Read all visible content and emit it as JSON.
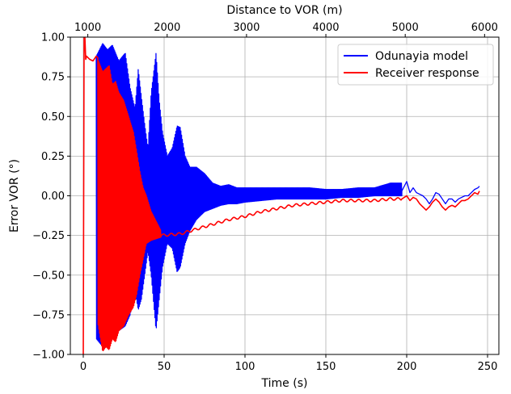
{
  "chart_data": {
    "type": "line",
    "xlabel": "Time (s)",
    "ylabel": "Error VOR (°)",
    "x2label": "Distance to VOR (m)",
    "xlim": [
      -8,
      257
    ],
    "ylim": [
      -1.0,
      1.0
    ],
    "x2lim": [
      780,
      6180
    ],
    "grid": true,
    "legend_position": "top-right",
    "xticks": [
      0,
      50,
      100,
      150,
      200,
      250
    ],
    "xtick_labels": [
      "0",
      "50",
      "100",
      "150",
      "200",
      "250"
    ],
    "yticks": [
      -1.0,
      -0.75,
      -0.5,
      -0.25,
      0.0,
      0.25,
      0.5,
      0.75,
      1.0
    ],
    "ytick_labels": [
      "−1.00",
      "−0.75",
      "−0.50",
      "−0.25",
      "0.00",
      "0.25",
      "0.50",
      "0.75",
      "1.00"
    ],
    "x2ticks": [
      1000,
      2000,
      3000,
      4000,
      5000,
      6000
    ],
    "x2tick_labels": [
      "1000",
      "2000",
      "3000",
      "4000",
      "5000",
      "6000"
    ],
    "series": [
      {
        "name": "Odunayia model",
        "color": "#0000ff",
        "envelope_upper": [
          [
            8,
            0.88
          ],
          [
            12,
            0.96
          ],
          [
            15,
            0.92
          ],
          [
            18,
            0.95
          ],
          [
            22,
            0.85
          ],
          [
            26,
            0.9
          ],
          [
            29,
            0.68
          ],
          [
            32,
            0.55
          ],
          [
            34,
            0.8
          ],
          [
            36,
            0.62
          ],
          [
            38,
            0.45
          ],
          [
            40,
            0.3
          ],
          [
            42,
            0.65
          ],
          [
            45,
            0.9
          ],
          [
            47,
            0.6
          ],
          [
            49,
            0.4
          ],
          [
            52,
            0.25
          ],
          [
            55,
            0.3
          ],
          [
            58,
            0.44
          ],
          [
            60,
            0.43
          ],
          [
            63,
            0.25
          ],
          [
            66,
            0.18
          ],
          [
            70,
            0.18
          ],
          [
            75,
            0.14
          ],
          [
            80,
            0.08
          ],
          [
            85,
            0.06
          ],
          [
            90,
            0.07
          ],
          [
            95,
            0.05
          ],
          [
            100,
            0.05
          ],
          [
            110,
            0.05
          ],
          [
            120,
            0.05
          ],
          [
            130,
            0.05
          ],
          [
            140,
            0.05
          ],
          [
            150,
            0.04
          ],
          [
            160,
            0.04
          ],
          [
            170,
            0.05
          ],
          [
            180,
            0.05
          ],
          [
            190,
            0.08
          ],
          [
            197,
            0.08
          ]
        ],
        "envelope_lower": [
          [
            8,
            -0.9
          ],
          [
            12,
            -0.95
          ],
          [
            15,
            -0.92
          ],
          [
            18,
            -0.9
          ],
          [
            22,
            -0.85
          ],
          [
            26,
            -0.82
          ],
          [
            29,
            -0.75
          ],
          [
            32,
            -0.6
          ],
          [
            34,
            -0.72
          ],
          [
            36,
            -0.65
          ],
          [
            38,
            -0.5
          ],
          [
            40,
            -0.35
          ],
          [
            42,
            -0.5
          ],
          [
            45,
            -0.85
          ],
          [
            47,
            -0.65
          ],
          [
            49,
            -0.45
          ],
          [
            52,
            -0.3
          ],
          [
            55,
            -0.33
          ],
          [
            58,
            -0.48
          ],
          [
            60,
            -0.45
          ],
          [
            63,
            -0.3
          ],
          [
            66,
            -0.22
          ],
          [
            70,
            -0.15
          ],
          [
            75,
            -0.1
          ],
          [
            80,
            -0.08
          ],
          [
            85,
            -0.06
          ],
          [
            90,
            -0.05
          ],
          [
            95,
            -0.05
          ],
          [
            100,
            -0.04
          ],
          [
            110,
            -0.03
          ],
          [
            120,
            -0.02
          ],
          [
            130,
            -0.02
          ],
          [
            140,
            -0.02
          ],
          [
            150,
            -0.02
          ],
          [
            160,
            -0.01
          ],
          [
            170,
            -0.01
          ],
          [
            180,
            0.0
          ],
          [
            190,
            0.0
          ],
          [
            197,
            0.0
          ]
        ],
        "tail": [
          [
            197,
            0.03
          ],
          [
            199,
            0.07
          ],
          [
            200,
            0.09
          ],
          [
            202,
            0.02
          ],
          [
            204,
            0.05
          ],
          [
            206,
            0.02
          ],
          [
            208,
            0.01
          ],
          [
            210,
            0.0
          ],
          [
            212,
            -0.02
          ],
          [
            214,
            -0.05
          ],
          [
            216,
            -0.02
          ],
          [
            218,
            0.02
          ],
          [
            220,
            0.01
          ],
          [
            222,
            -0.02
          ],
          [
            224,
            -0.05
          ],
          [
            226,
            -0.02
          ],
          [
            228,
            -0.02
          ],
          [
            230,
            -0.04
          ],
          [
            232,
            -0.02
          ],
          [
            234,
            -0.01
          ],
          [
            236,
            0.0
          ],
          [
            238,
            0.0
          ],
          [
            240,
            0.02
          ],
          [
            242,
            0.04
          ],
          [
            244,
            0.05
          ],
          [
            245,
            0.06
          ]
        ]
      },
      {
        "name": "Receiver response",
        "color": "#ff0000",
        "spike": [
          [
            0,
            -1.0
          ],
          [
            0.5,
            1.0
          ],
          [
            1,
            1.0
          ],
          [
            1.5,
            0.86
          ],
          [
            2,
            0.88
          ],
          [
            4,
            0.86
          ],
          [
            6,
            0.85
          ],
          [
            8,
            0.88
          ],
          [
            9,
            0.87
          ]
        ],
        "envelope_upper": [
          [
            9,
            0.86
          ],
          [
            12,
            0.78
          ],
          [
            14,
            0.8
          ],
          [
            16,
            0.82
          ],
          [
            18,
            0.7
          ],
          [
            20,
            0.72
          ],
          [
            22,
            0.65
          ],
          [
            25,
            0.6
          ],
          [
            28,
            0.5
          ],
          [
            31,
            0.4
          ],
          [
            33,
            0.28
          ],
          [
            35,
            0.15
          ],
          [
            37,
            0.05
          ],
          [
            39,
            0.0
          ],
          [
            42,
            -0.1
          ],
          [
            45,
            -0.16
          ],
          [
            48,
            -0.22
          ]
        ],
        "envelope_lower": [
          [
            9,
            -0.8
          ],
          [
            12,
            -0.98
          ],
          [
            14,
            -0.95
          ],
          [
            16,
            -0.97
          ],
          [
            18,
            -0.9
          ],
          [
            20,
            -0.92
          ],
          [
            22,
            -0.85
          ],
          [
            25,
            -0.82
          ],
          [
            28,
            -0.75
          ],
          [
            31,
            -0.7
          ],
          [
            33,
            -0.62
          ],
          [
            35,
            -0.5
          ],
          [
            37,
            -0.4
          ],
          [
            39,
            -0.3
          ],
          [
            42,
            -0.28
          ],
          [
            45,
            -0.27
          ],
          [
            48,
            -0.26
          ]
        ],
        "trend": [
          [
            48,
            -0.25
          ],
          [
            60,
            -0.24
          ],
          [
            70,
            -0.21
          ],
          [
            80,
            -0.18
          ],
          [
            90,
            -0.15
          ],
          [
            100,
            -0.13
          ],
          [
            110,
            -0.1
          ],
          [
            120,
            -0.08
          ],
          [
            130,
            -0.06
          ],
          [
            140,
            -0.05
          ],
          [
            150,
            -0.04
          ],
          [
            160,
            -0.03
          ],
          [
            170,
            -0.03
          ],
          [
            180,
            -0.03
          ],
          [
            190,
            -0.02
          ],
          [
            197,
            -0.02
          ],
          [
            200,
            0.0
          ],
          [
            202,
            -0.03
          ],
          [
            204,
            -0.01
          ],
          [
            206,
            -0.02
          ],
          [
            208,
            -0.05
          ],
          [
            210,
            -0.07
          ],
          [
            212,
            -0.09
          ],
          [
            214,
            -0.07
          ],
          [
            216,
            -0.04
          ],
          [
            218,
            -0.02
          ],
          [
            220,
            -0.04
          ],
          [
            222,
            -0.07
          ],
          [
            224,
            -0.09
          ],
          [
            226,
            -0.07
          ],
          [
            228,
            -0.06
          ],
          [
            230,
            -0.07
          ],
          [
            232,
            -0.05
          ],
          [
            234,
            -0.03
          ],
          [
            236,
            -0.03
          ],
          [
            238,
            -0.02
          ],
          [
            240,
            0.0
          ],
          [
            242,
            0.02
          ],
          [
            244,
            0.01
          ],
          [
            245,
            0.03
          ]
        ]
      }
    ]
  }
}
